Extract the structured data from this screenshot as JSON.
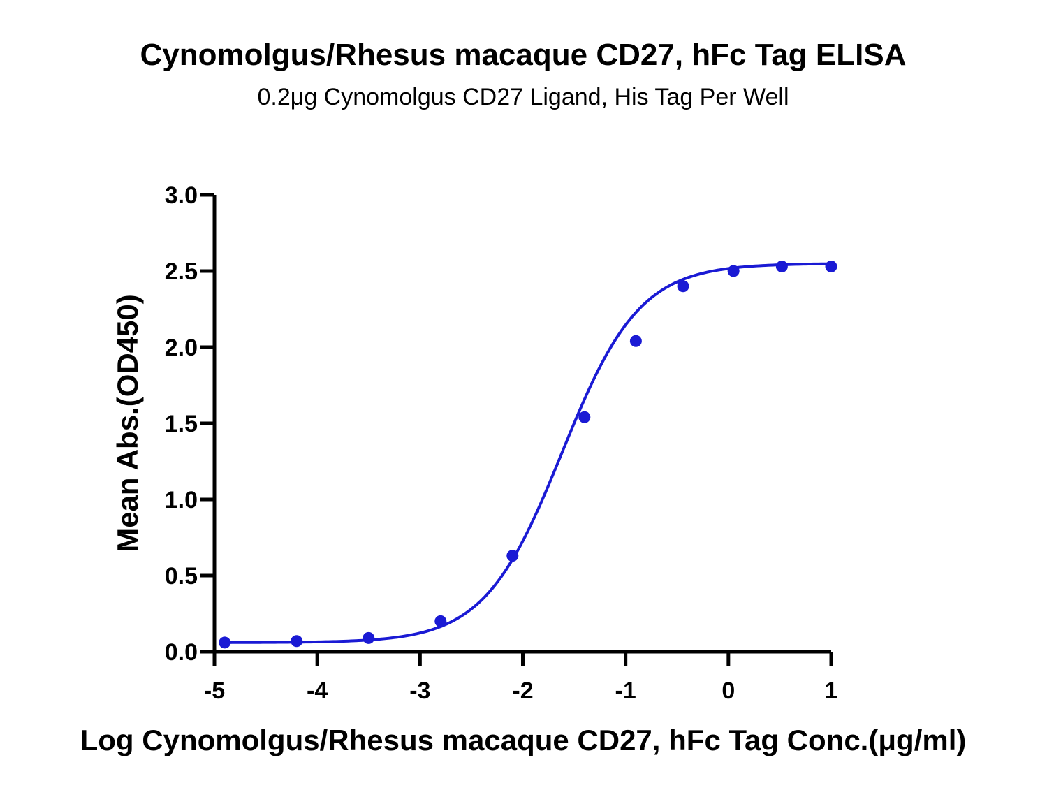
{
  "chart_data": {
    "type": "scatter",
    "title": "Cynomolgus/Rhesus macaque CD27, hFc Tag ELISA",
    "subtitle": "0.2μg Cynomolgus CD27 Ligand, His Tag Per Well",
    "xlabel": "Log Cynomolgus/Rhesus macaque CD27, hFc Tag Conc.(μg/ml)",
    "ylabel": "Mean Abs.(OD450)",
    "xlim": [
      -5,
      1
    ],
    "ylim": [
      0,
      3
    ],
    "x_ticks": [
      -5,
      -4,
      -3,
      -2,
      -1,
      0,
      1
    ],
    "x_tick_labels": [
      "-5",
      "-4",
      "-3",
      "-2",
      "-1",
      "0",
      "1"
    ],
    "y_ticks": [
      0,
      0.5,
      1.0,
      1.5,
      2.0,
      2.5,
      3.0
    ],
    "y_tick_labels": [
      "0.0",
      "0.5",
      "1.0",
      "1.5",
      "2.0",
      "2.5",
      "3.0"
    ],
    "grid": false,
    "legend": "none",
    "series": [
      {
        "x": [
          -4.9,
          -4.2,
          -3.5,
          -2.8,
          -2.1,
          -1.4,
          -0.9,
          -0.44,
          0.05,
          0.52,
          1.0
        ],
        "y": [
          0.06,
          0.07,
          0.09,
          0.2,
          0.63,
          1.54,
          2.04,
          2.4,
          2.5,
          2.53,
          2.53
        ],
        "color": "#1a1ad4",
        "marker": "circle",
        "fit": "4PL sigmoid"
      }
    ]
  }
}
